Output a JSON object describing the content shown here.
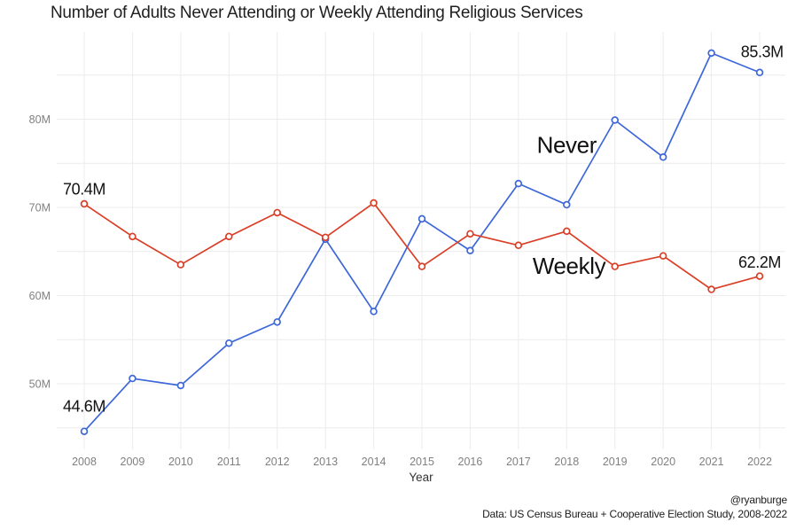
{
  "title": "Number of Adults Never Attending or Weekly Attending Religious Services",
  "caption": {
    "line1": "@ryanburge",
    "line2": "Data: US Census Bureau + Cooperative Election Study, 2008-2022"
  },
  "colors": {
    "never_line": "#3D67D9",
    "weekly_line": "#DB3E26",
    "grid": "#ececec",
    "axis_text": "#808080",
    "axis_title_text": "#333333",
    "annotation_text": "#111111",
    "background": "#ffffff"
  },
  "chart_data": {
    "type": "line",
    "title": "Number of Adults Never Attending or Weekly Attending Religious Services",
    "xlabel": "Year",
    "ylabel": "",
    "x": [
      2008,
      2009,
      2010,
      2011,
      2012,
      2013,
      2014,
      2015,
      2016,
      2017,
      2018,
      2019,
      2020,
      2021,
      2022
    ],
    "series": [
      {
        "name": "Never",
        "color": "#3D67D9",
        "values": [
          44.6,
          50.6,
          49.8,
          54.6,
          57.0,
          66.4,
          58.2,
          68.7,
          65.1,
          72.7,
          70.3,
          79.9,
          75.7,
          87.5,
          85.3
        ]
      },
      {
        "name": "Weekly",
        "color": "#DB3E26",
        "values": [
          70.4,
          66.7,
          63.5,
          66.7,
          69.4,
          66.6,
          70.5,
          63.3,
          67.0,
          65.7,
          67.3,
          63.3,
          64.5,
          60.7,
          62.2
        ]
      }
    ],
    "ylim": [
      43,
      89
    ],
    "yticks": [
      50,
      60,
      70,
      80
    ],
    "ytick_labels": [
      "50M",
      "60M",
      "70M",
      "80M"
    ],
    "minor_yticks": [
      45,
      55,
      65,
      75,
      85
    ],
    "grid": true,
    "legend_position": "none",
    "annotations": [
      {
        "text": "70.4M",
        "x": 2008,
        "y": 72.1,
        "size": 18,
        "weight": 500
      },
      {
        "text": "44.6M",
        "x": 2008,
        "y": 47.5,
        "size": 18,
        "weight": 500
      },
      {
        "text": "85.3M",
        "x": 2022.05,
        "y": 87.7,
        "size": 18,
        "weight": 500
      },
      {
        "text": "62.2M",
        "x": 2022,
        "y": 63.8,
        "size": 18,
        "weight": 500
      },
      {
        "text": "Never",
        "x": 2018.0,
        "y": 77.1,
        "size": 26,
        "weight": 400
      },
      {
        "text": "Weekly",
        "x": 2018.05,
        "y": 63.4,
        "size": 26,
        "weight": 400
      }
    ]
  }
}
